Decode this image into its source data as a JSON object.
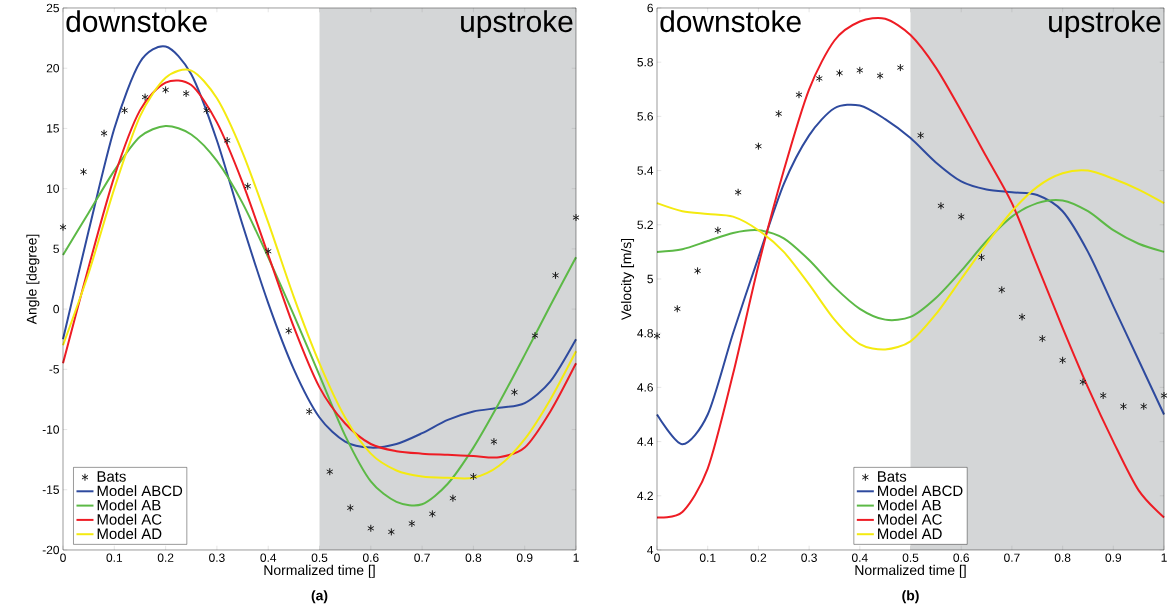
{
  "chart_data": [
    {
      "type": "line",
      "xlabel": "Normalized time []",
      "ylabel": "Angle [degree]",
      "annotations": [
        "downstoke",
        "upstroke",
        "(a)"
      ],
      "xlim": [
        0,
        1
      ],
      "xticks": [
        0,
        0.1,
        0.2,
        0.3,
        0.4,
        0.5,
        0.6,
        0.7,
        0.8,
        0.9,
        1
      ],
      "ylim": [
        -20,
        25
      ],
      "yticks": [
        -20,
        -15,
        -10,
        -5,
        0,
        5,
        10,
        15,
        20,
        25
      ],
      "bands": [
        {
          "axis": "x",
          "from": 0.5,
          "to": 1,
          "color": "#d4d6d7"
        }
      ],
      "legend": "bottom left",
      "grid": false,
      "series": [
        {
          "name": "Bats",
          "type": "scatter",
          "marker": "cross",
          "color": "#1a1a1a",
          "x": [
            0,
            0.04,
            0.08,
            0.12,
            0.16,
            0.2,
            0.24,
            0.28,
            0.32,
            0.36,
            0.4,
            0.44,
            0.48,
            0.52,
            0.56,
            0.6,
            0.64,
            0.68,
            0.72,
            0.76,
            0.8,
            0.84,
            0.88,
            0.92,
            0.96,
            1
          ],
          "values": [
            6.8,
            11.4,
            14.6,
            16.5,
            17.6,
            18.2,
            17.9,
            16.5,
            14.0,
            10.2,
            4.8,
            -1.8,
            -8.5,
            -13.5,
            -16.5,
            -18.2,
            -18.5,
            -17.8,
            -17.0,
            -15.7,
            -13.9,
            -11.0,
            -6.9,
            -2.2,
            2.8,
            7.6
          ]
        },
        {
          "name": "Model ABCD",
          "color": "#2e4a9e",
          "x": [
            0,
            0.05,
            0.1,
            0.15,
            0.2,
            0.25,
            0.3,
            0.35,
            0.4,
            0.45,
            0.5,
            0.55,
            0.6,
            0.65,
            0.7,
            0.75,
            0.8,
            0.85,
            0.9,
            0.95,
            1
          ],
          "values": [
            -2.5,
            6.5,
            15,
            20.5,
            21.8,
            19.5,
            14,
            7,
            0.5,
            -5,
            -9,
            -11,
            -11.5,
            -11.2,
            -10.3,
            -9.2,
            -8.5,
            -8.2,
            -7.8,
            -6,
            -2.5
          ]
        },
        {
          "name": "Model AB",
          "color": "#5cb946",
          "x": [
            0,
            0.05,
            0.1,
            0.15,
            0.2,
            0.25,
            0.3,
            0.35,
            0.4,
            0.45,
            0.5,
            0.55,
            0.6,
            0.65,
            0.7,
            0.75,
            0.8,
            0.85,
            0.9,
            0.95,
            1
          ],
          "values": [
            4.5,
            8,
            11.5,
            14.3,
            15.2,
            14.5,
            12.3,
            8.8,
            4.3,
            -0.5,
            -5.5,
            -10.5,
            -14.3,
            -16,
            -16.2,
            -14.5,
            -11.5,
            -7.8,
            -3.8,
            0.3,
            4.3
          ]
        },
        {
          "name": "Model AC",
          "color": "#ee1c24",
          "x": [
            0,
            0.05,
            0.1,
            0.15,
            0.2,
            0.25,
            0.3,
            0.35,
            0.4,
            0.45,
            0.5,
            0.55,
            0.6,
            0.65,
            0.7,
            0.75,
            0.8,
            0.85,
            0.9,
            0.95,
            1
          ],
          "values": [
            -4.5,
            3.5,
            11,
            16.5,
            18.8,
            18.6,
            15.5,
            10.5,
            4.5,
            -1.5,
            -6.5,
            -9.5,
            -11.2,
            -11.8,
            -12,
            -12.1,
            -12.2,
            -12.3,
            -11.5,
            -8.5,
            -4.5
          ]
        },
        {
          "name": "Model AD",
          "color": "#f4ea10",
          "x": [
            0,
            0.05,
            0.1,
            0.15,
            0.2,
            0.25,
            0.3,
            0.35,
            0.4,
            0.45,
            0.5,
            0.55,
            0.6,
            0.65,
            0.7,
            0.75,
            0.8,
            0.85,
            0.9,
            0.95,
            1
          ],
          "values": [
            -3,
            3,
            10,
            16,
            19.2,
            19.8,
            17.5,
            13,
            7.2,
            1,
            -4.5,
            -9,
            -12,
            -13.4,
            -13.9,
            -14,
            -14,
            -13,
            -10.8,
            -7.5,
            -3.5
          ]
        }
      ]
    },
    {
      "type": "line",
      "xlabel": "Normalized time []",
      "ylabel": "Velocity [m/s]",
      "annotations": [
        "downstoke",
        "upstroke",
        "(b)"
      ],
      "xlim": [
        0,
        1
      ],
      "xticks": [
        0,
        0.1,
        0.2,
        0.3,
        0.4,
        0.5,
        0.6,
        0.7,
        0.8,
        0.9,
        1
      ],
      "ylim": [
        4,
        6
      ],
      "yticks": [
        4,
        4.2,
        4.4,
        4.6,
        4.8,
        5,
        5.2,
        5.4,
        5.6,
        5.8,
        6
      ],
      "bands": [
        {
          "axis": "x",
          "from": 0.5,
          "to": 1,
          "color": "#d4d6d7"
        }
      ],
      "legend": "bottom",
      "grid": false,
      "series": [
        {
          "name": "Bats",
          "type": "scatter",
          "marker": "cross",
          "color": "#1a1a1a",
          "x": [
            0,
            0.04,
            0.08,
            0.12,
            0.16,
            0.2,
            0.24,
            0.28,
            0.32,
            0.36,
            0.4,
            0.44,
            0.48,
            0.52,
            0.56,
            0.6,
            0.64,
            0.68,
            0.72,
            0.76,
            0.8,
            0.84,
            0.88,
            0.92,
            0.96,
            1
          ],
          "values": [
            4.79,
            4.89,
            5.03,
            5.18,
            5.32,
            5.49,
            5.61,
            5.68,
            5.74,
            5.76,
            5.77,
            5.75,
            5.78,
            5.53,
            5.27,
            5.23,
            5.08,
            4.96,
            4.86,
            4.78,
            4.7,
            4.62,
            4.57,
            4.53,
            4.53,
            4.57
          ]
        },
        {
          "name": "Model ABCD",
          "color": "#2e4a9e",
          "x": [
            0,
            0.05,
            0.1,
            0.15,
            0.2,
            0.25,
            0.3,
            0.35,
            0.4,
            0.45,
            0.5,
            0.55,
            0.6,
            0.65,
            0.7,
            0.75,
            0.8,
            0.85,
            0.9,
            0.95,
            1
          ],
          "values": [
            4.5,
            4.39,
            4.5,
            4.8,
            5.08,
            5.35,
            5.53,
            5.63,
            5.64,
            5.59,
            5.52,
            5.43,
            5.36,
            5.33,
            5.32,
            5.31,
            5.25,
            5.1,
            4.9,
            4.7,
            4.5
          ]
        },
        {
          "name": "Model AB",
          "color": "#5cb946",
          "x": [
            0,
            0.05,
            0.1,
            0.15,
            0.2,
            0.25,
            0.3,
            0.35,
            0.4,
            0.45,
            0.5,
            0.55,
            0.6,
            0.65,
            0.7,
            0.75,
            0.8,
            0.85,
            0.9,
            0.95,
            1
          ],
          "values": [
            5.1,
            5.11,
            5.14,
            5.17,
            5.18,
            5.15,
            5.07,
            4.97,
            4.89,
            4.85,
            4.86,
            4.93,
            5.03,
            5.14,
            5.23,
            5.28,
            5.29,
            5.25,
            5.18,
            5.13,
            5.1
          ]
        },
        {
          "name": "Model AC",
          "color": "#ee1c24",
          "x": [
            0,
            0.05,
            0.1,
            0.15,
            0.2,
            0.25,
            0.3,
            0.35,
            0.4,
            0.45,
            0.5,
            0.55,
            0.6,
            0.65,
            0.7,
            0.75,
            0.8,
            0.85,
            0.9,
            0.95,
            1
          ],
          "values": [
            4.12,
            4.14,
            4.3,
            4.65,
            5.05,
            5.4,
            5.7,
            5.88,
            5.95,
            5.96,
            5.9,
            5.78,
            5.62,
            5.45,
            5.28,
            5.05,
            4.82,
            4.6,
            4.4,
            4.22,
            4.12
          ]
        },
        {
          "name": "Model AD",
          "color": "#f4ea10",
          "x": [
            0,
            0.05,
            0.1,
            0.15,
            0.2,
            0.25,
            0.3,
            0.35,
            0.4,
            0.45,
            0.5,
            0.55,
            0.6,
            0.65,
            0.7,
            0.75,
            0.8,
            0.85,
            0.9,
            0.95,
            1
          ],
          "values": [
            5.28,
            5.25,
            5.24,
            5.23,
            5.18,
            5.1,
            4.98,
            4.85,
            4.76,
            4.74,
            4.77,
            4.87,
            5.0,
            5.13,
            5.25,
            5.34,
            5.39,
            5.4,
            5.37,
            5.33,
            5.28
          ]
        }
      ]
    }
  ]
}
